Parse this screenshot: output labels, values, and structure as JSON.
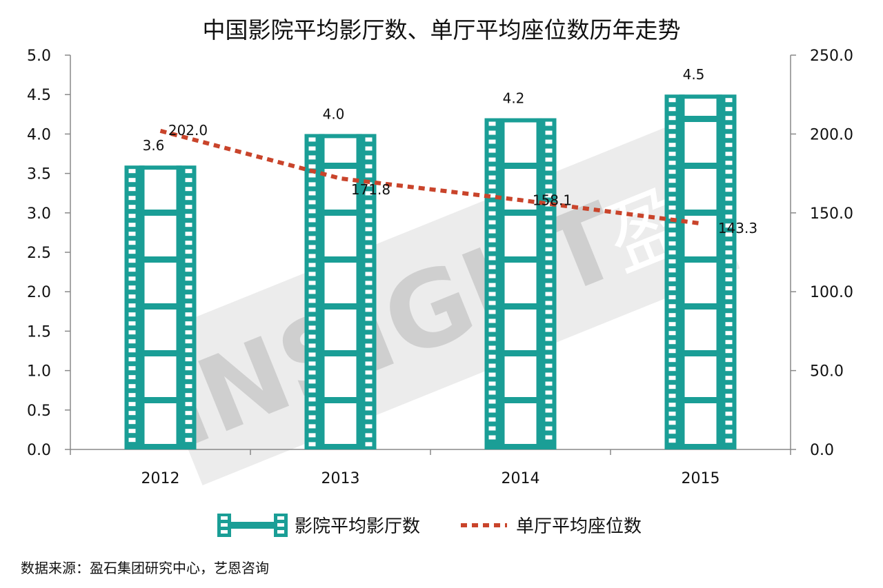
{
  "chart_data": {
    "type": "bar",
    "title": "中国影院平均影厅数、单厅平均座位数历年走势",
    "categories": [
      "2012",
      "2013",
      "2014",
      "2015"
    ],
    "series": [
      {
        "name": "影院平均影厅数",
        "type": "bar",
        "axis": "left",
        "values": [
          3.6,
          4.0,
          4.2,
          4.5
        ],
        "labels": [
          "3.6",
          "4.0",
          "4.2",
          "4.5"
        ],
        "color": "#1a9e96"
      },
      {
        "name": "单厅平均座位数",
        "type": "line",
        "axis": "right",
        "style": "dotted",
        "values": [
          202.0,
          171.8,
          158.1,
          143.3
        ],
        "labels": [
          "202.0",
          "171.8",
          "158.1",
          "143.3"
        ],
        "color": "#c9442b"
      }
    ],
    "y_left": {
      "min": 0,
      "max": 5.0,
      "ticks": [
        "0.0",
        "0.5",
        "1.0",
        "1.5",
        "2.0",
        "2.5",
        "3.0",
        "3.5",
        "4.0",
        "4.5",
        "5.0"
      ]
    },
    "y_right": {
      "min": 0,
      "max": 250.0,
      "ticks": [
        "0.0",
        "50.0",
        "100.0",
        "150.0",
        "200.0",
        "250.0"
      ]
    },
    "grid": false,
    "legend_position": "bottom"
  },
  "watermark": {
    "text": "INSIGHT",
    "char": "盈"
  },
  "source_note": "数据来源：盈石集团研究中心，艺恩咨询"
}
